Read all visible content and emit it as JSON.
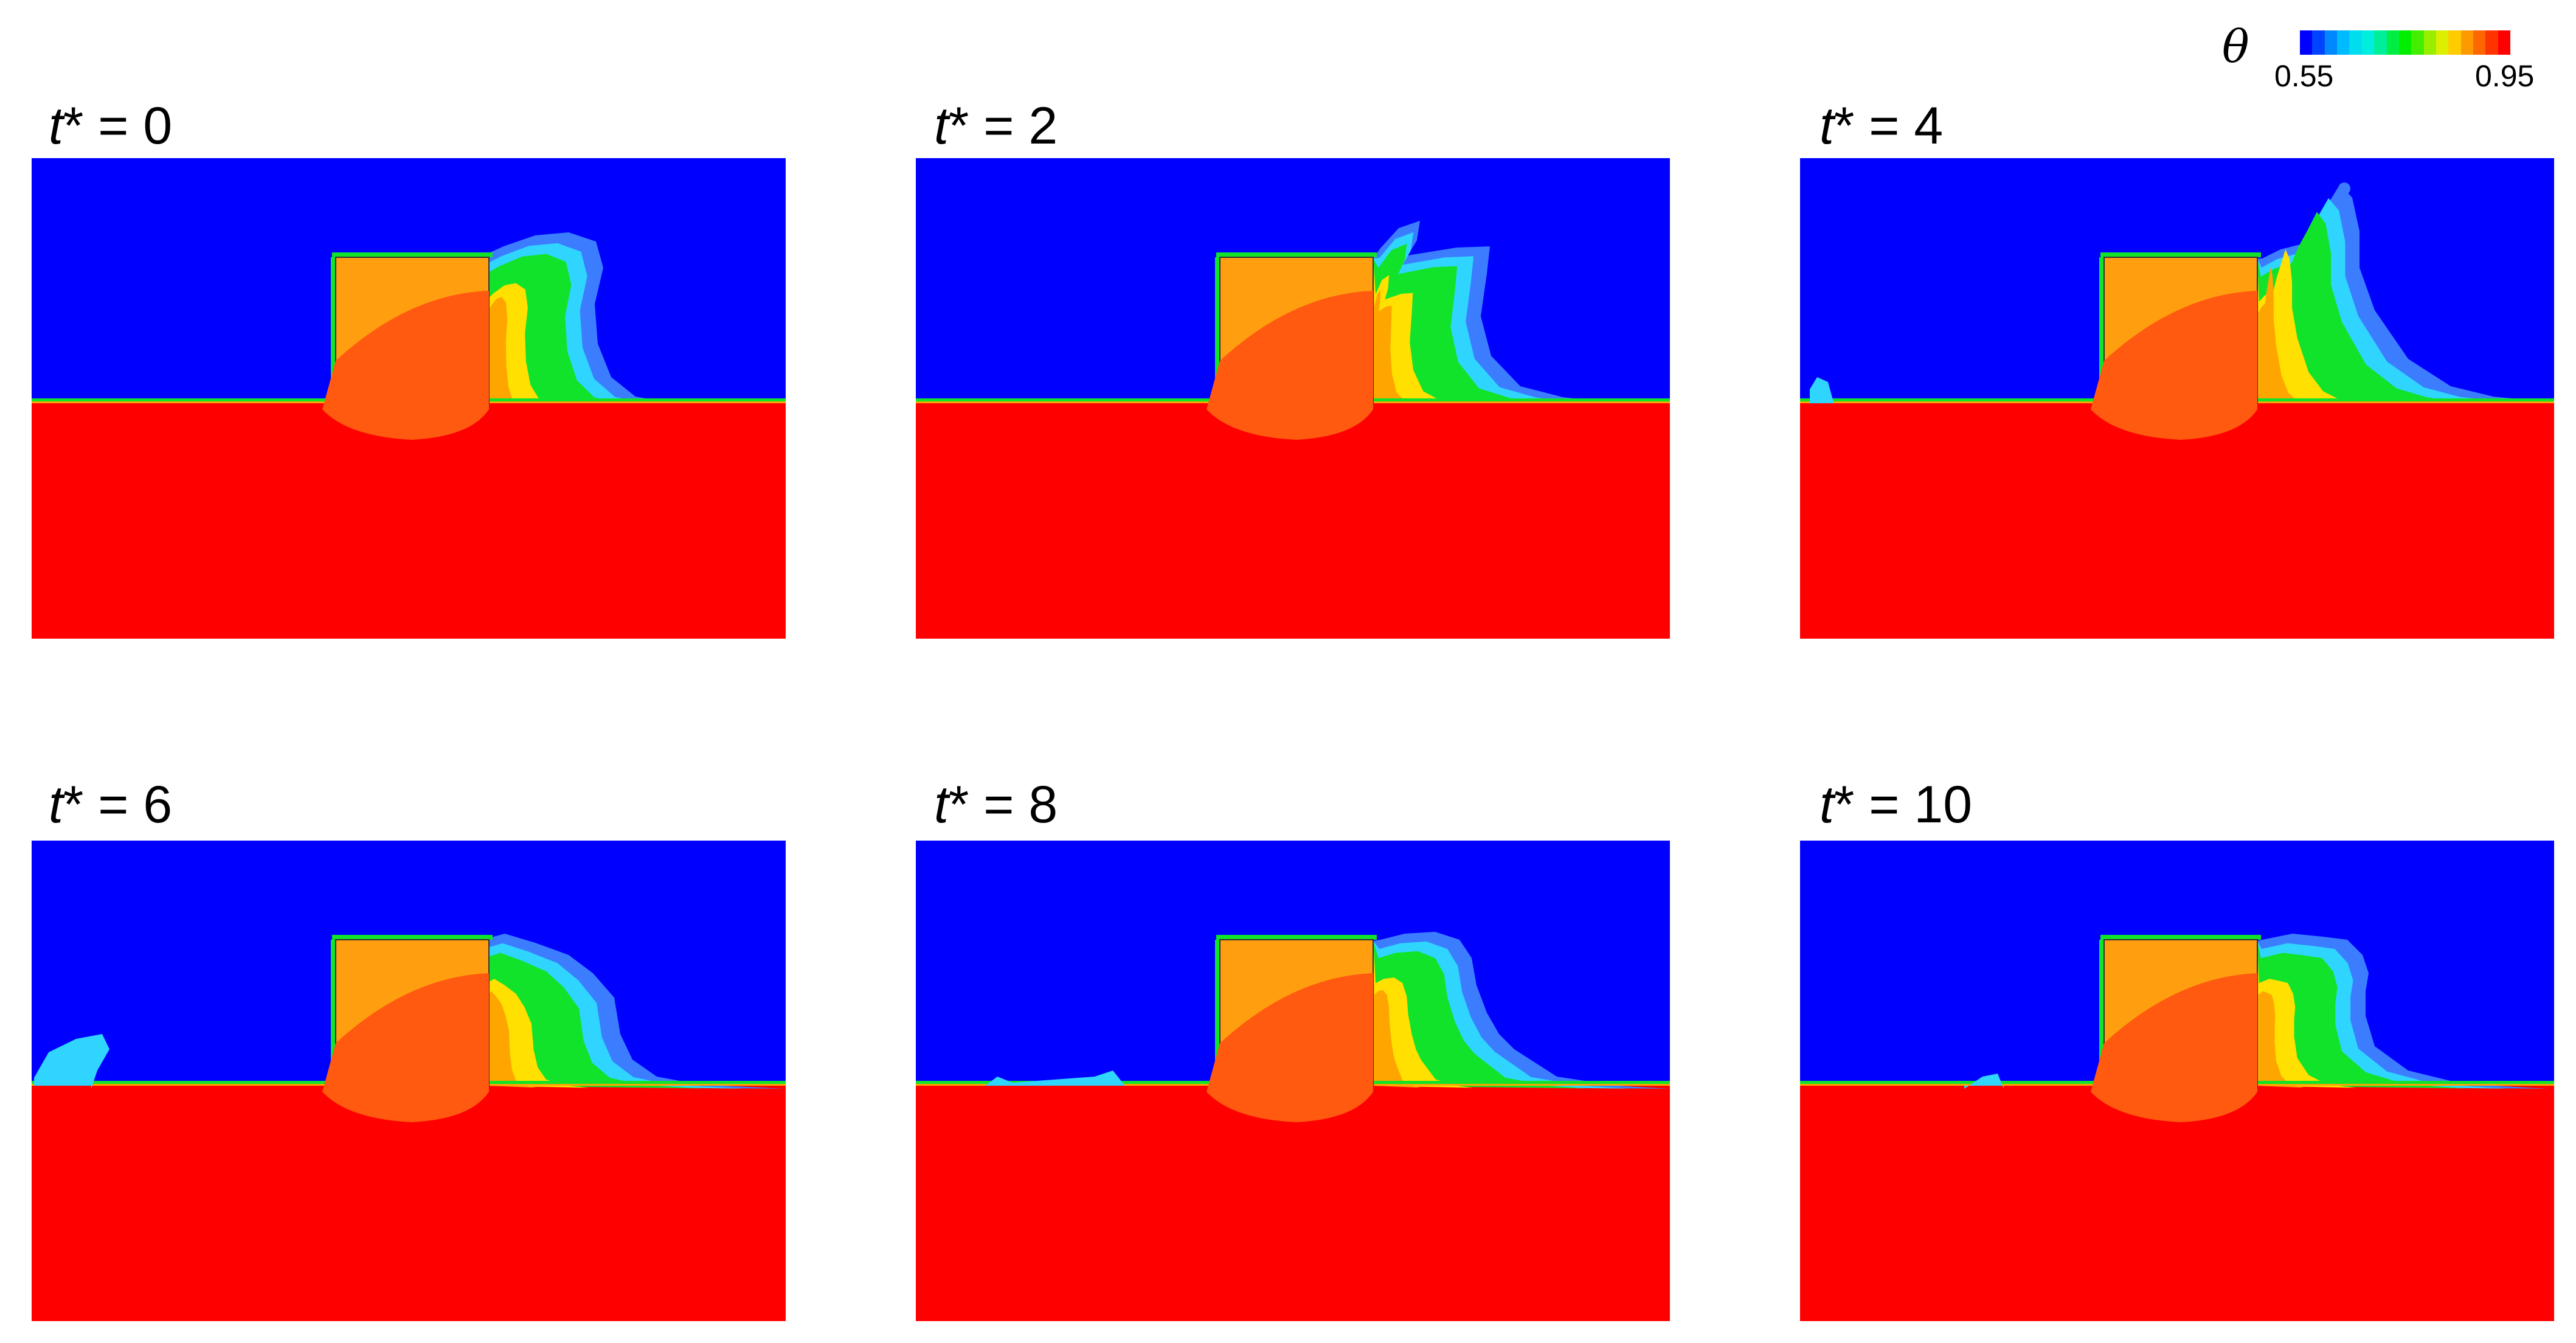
{
  "legend": {
    "symbol": "θ",
    "min_label": "0.55",
    "max_label": "0.95",
    "colors": [
      "#0000ff",
      "#0044ff",
      "#0088ff",
      "#00bbff",
      "#00ddee",
      "#00eedd",
      "#00ee99",
      "#00ee44",
      "#00ee00",
      "#44ee00",
      "#99ee00",
      "#ddee00",
      "#ffcc00",
      "#ff9900",
      "#ff6600",
      "#ff3300",
      "#ff0000"
    ]
  },
  "palette": {
    "cold": "#0000ff",
    "hot": "#ff0000",
    "block": "#ff9f0f",
    "interior": "#ff5a0f",
    "plume_outer": "#3c7dff",
    "plume_cyan": "#2fd5ff",
    "plume_green": "#10e32a",
    "plume_yellow": "#ffe000",
    "plume_orange": "#ffa500"
  },
  "panels": [
    {
      "t_var": "t",
      "star": "*",
      "eq": " = ",
      "value": "0",
      "plume": [
        [
          793,
          421
        ],
        [
          828,
          405
        ],
        [
          880,
          387
        ],
        [
          935,
          382
        ],
        [
          980,
          397
        ],
        [
          992,
          440
        ],
        [
          978,
          500
        ],
        [
          983,
          565
        ],
        [
          1005,
          620
        ],
        [
          1045,
          652
        ],
        [
          1095,
          661
        ]
      ],
      "left_wave": [],
      "tip": null
    },
    {
      "t_var": "t",
      "star": "*",
      "eq": " = ",
      "value": "2",
      "plume": [
        [
          2270,
          408
        ],
        [
          2300,
          375
        ],
        [
          2335,
          363
        ],
        [
          2330,
          395
        ],
        [
          2315,
          420
        ],
        [
          2395,
          407
        ],
        [
          2450,
          405
        ],
        [
          2445,
          450
        ],
        [
          2435,
          520
        ],
        [
          2452,
          585
        ],
        [
          2500,
          635
        ],
        [
          2570,
          653
        ],
        [
          2640,
          661
        ]
      ],
      "left_wave": [],
      "tip": null
    },
    {
      "t_var": "t",
      "star": "*",
      "eq": " = ",
      "value": "4",
      "plume": [
        [
          3720,
          425
        ],
        [
          3750,
          410
        ],
        [
          3790,
          400
        ],
        [
          3805,
          370
        ],
        [
          3825,
          340
        ],
        [
          3848,
          303
        ],
        [
          3868,
          325
        ],
        [
          3880,
          380
        ],
        [
          3880,
          440
        ],
        [
          3905,
          510
        ],
        [
          3960,
          590
        ],
        [
          4030,
          635
        ],
        [
          4100,
          652
        ],
        [
          4190,
          661
        ]
      ],
      "left_wave": [
        [
          2976,
          640
        ],
        [
          2988,
          620
        ],
        [
          3006,
          628
        ],
        [
          3015,
          661
        ]
      ],
      "tip": [
        3855,
        310
      ]
    },
    {
      "t_var": "t",
      "star": "*",
      "eq": " = ",
      "value": "6",
      "plume": [
        [
          793,
          1545
        ],
        [
          830,
          1535
        ],
        [
          880,
          1550
        ],
        [
          935,
          1570
        ],
        [
          975,
          1600
        ],
        [
          1010,
          1640
        ],
        [
          1020,
          1700
        ],
        [
          1040,
          1742
        ],
        [
          1080,
          1770
        ],
        [
          1150,
          1783
        ],
        [
          1290,
          1790
        ]
      ],
      "left_wave": [
        [
          56,
          1772
        ],
        [
          80,
          1730
        ],
        [
          125,
          1708
        ],
        [
          168,
          1700
        ],
        [
          180,
          1725
        ],
        [
          160,
          1760
        ],
        [
          150,
          1790
        ]
      ],
      "tip": null
    },
    {
      "t_var": "t",
      "star": "*",
      "eq": " = ",
      "value": "8",
      "plume": [
        [
          2270,
          1545
        ],
        [
          2310,
          1535
        ],
        [
          2360,
          1532
        ],
        [
          2400,
          1545
        ],
        [
          2420,
          1575
        ],
        [
          2428,
          1620
        ],
        [
          2445,
          1665
        ],
        [
          2465,
          1700
        ],
        [
          2490,
          1725
        ],
        [
          2560,
          1770
        ],
        [
          2660,
          1785
        ],
        [
          2745,
          1790
        ]
      ],
      "left_wave": [
        [
          1620,
          1785
        ],
        [
          1640,
          1770
        ],
        [
          1665,
          1780
        ],
        [
          1800,
          1770
        ],
        [
          1830,
          1760
        ],
        [
          1850,
          1785
        ]
      ],
      "tip": null
    },
    {
      "t_var": "t",
      "star": "*",
      "eq": " = ",
      "value": "10",
      "plume": [
        [
          3720,
          1545
        ],
        [
          3770,
          1535
        ],
        [
          3820,
          1540
        ],
        [
          3860,
          1545
        ],
        [
          3885,
          1570
        ],
        [
          3895,
          1600
        ],
        [
          3890,
          1630
        ],
        [
          3890,
          1670
        ],
        [
          3905,
          1720
        ],
        [
          3960,
          1760
        ],
        [
          4050,
          1782
        ],
        [
          4190,
          1790
        ]
      ],
      "left_wave": [
        [
          3230,
          1790
        ],
        [
          3260,
          1770
        ],
        [
          3285,
          1765
        ],
        [
          3295,
          1790
        ]
      ],
      "tip": null
    }
  ]
}
